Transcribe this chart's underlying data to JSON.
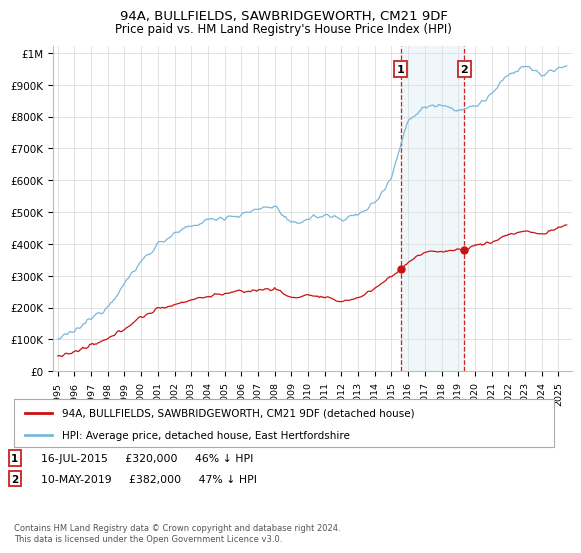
{
  "title": "94A, BULLFIELDS, SAWBRIDGEWORTH, CM21 9DF",
  "subtitle": "Price paid vs. HM Land Registry's House Price Index (HPI)",
  "yticks": [
    0,
    100000,
    200000,
    300000,
    400000,
    500000,
    600000,
    700000,
    800000,
    900000,
    1000000
  ],
  "ytick_labels": [
    "£0",
    "£100K",
    "£200K",
    "£300K",
    "£400K",
    "£500K",
    "£600K",
    "£700K",
    "£800K",
    "£900K",
    "£1M"
  ],
  "xlim_start": 1994.7,
  "xlim_end": 2025.8,
  "ylim_min": 0,
  "ylim_max": 1020000,
  "hpi_color": "#7ab8d9",
  "price_color": "#cc1111",
  "transaction1_date": 2015.54,
  "transaction1_price": 320000,
  "transaction2_date": 2019.36,
  "transaction2_price": 382000,
  "vline_color": "#cc2222",
  "shade_color": "#d6eaf5",
  "legend_label1": "94A, BULLFIELDS, SAWBRIDGEWORTH, CM21 9DF (detached house)",
  "legend_label2": "HPI: Average price, detached house, East Hertfordshire",
  "annotation1_text": "16-JUL-2015     £320,000     46% ↓ HPI",
  "annotation2_text": "10-MAY-2019     £382,000     47% ↓ HPI",
  "footer": "Contains HM Land Registry data © Crown copyright and database right 2024.\nThis data is licensed under the Open Government Licence v3.0.",
  "background_color": "#ffffff",
  "grid_color": "#dddddd"
}
